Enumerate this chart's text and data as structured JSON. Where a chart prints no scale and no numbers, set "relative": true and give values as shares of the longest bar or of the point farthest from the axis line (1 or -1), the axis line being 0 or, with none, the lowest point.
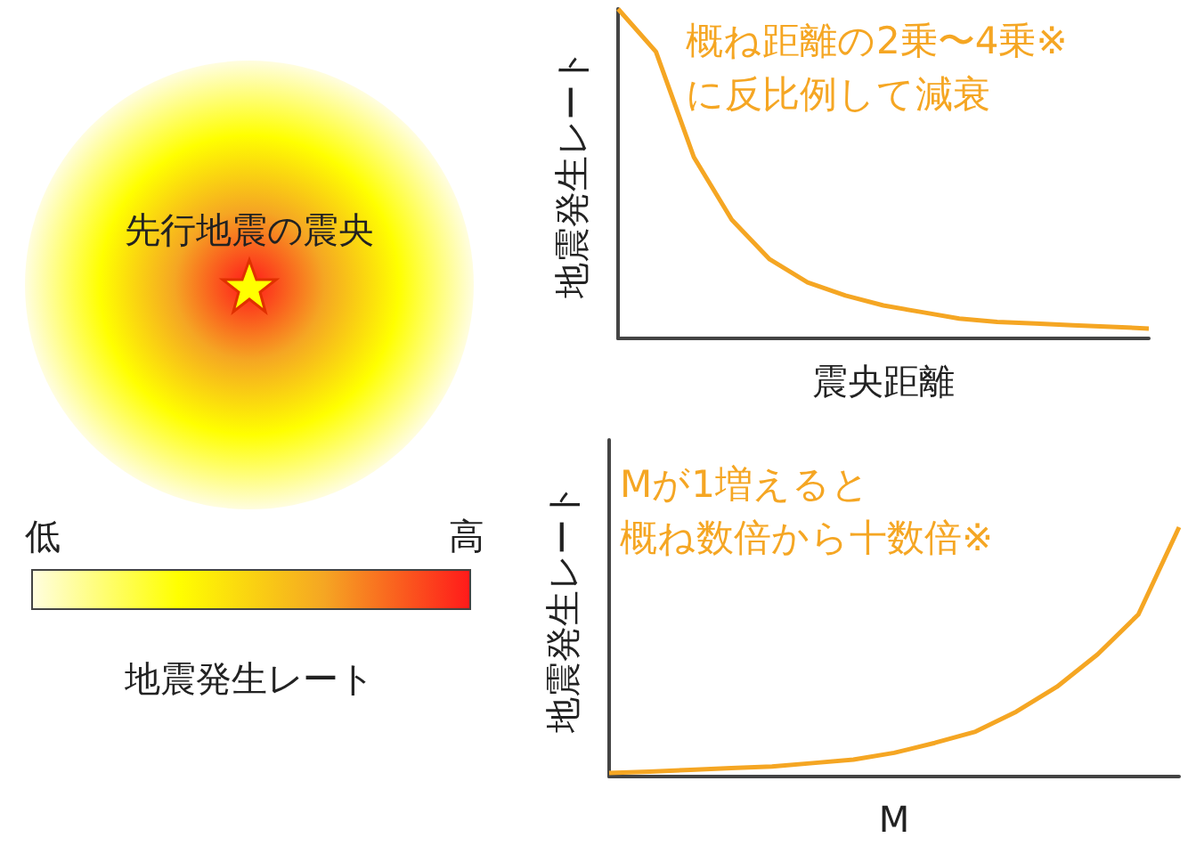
{
  "chart_data": [
    {
      "type": "other",
      "annotations": [
        "先行地震の震央",
        "低",
        "高"
      ],
      "clabel": "地震発生レート",
      "colors": [
        "#fffde0",
        "#ffff00",
        "#f5a623",
        "#ff1a1a"
      ]
    },
    {
      "type": "line",
      "relative": true,
      "xlabel": "震央距離",
      "ylabel": "地震発生レート",
      "annotations": [
        "概ね距離の2乗〜4乗※",
        "に反比例して減衰"
      ],
      "categories": [
        null,
        null,
        null,
        null,
        null,
        null,
        null,
        null,
        null,
        null,
        null,
        null,
        null,
        null,
        null
      ],
      "series": [
        {
          "color": "#f5a623",
          "values": [
            1.0,
            0.87,
            0.55,
            0.36,
            0.24,
            0.17,
            0.13,
            0.1,
            0.08,
            0.06,
            0.05,
            0.045,
            0.04,
            0.035,
            0.03
          ]
        }
      ],
      "marker": "none"
    },
    {
      "type": "line",
      "relative": true,
      "xlabel": "M",
      "ylabel": "地震発生レート",
      "annotations": [
        "Mが1増えると",
        "概ね数倍から十数倍※"
      ],
      "categories": [
        null,
        null,
        null,
        null,
        null,
        null,
        null,
        null,
        null,
        null,
        null,
        null,
        null,
        null,
        null
      ],
      "series": [
        {
          "color": "#f5a623",
          "values": [
            0.014,
            0.02,
            0.027,
            0.034,
            0.04,
            0.054,
            0.068,
            0.095,
            0.135,
            0.18,
            0.26,
            0.36,
            0.49,
            0.65,
            1.0
          ]
        }
      ],
      "marker": "none"
    }
  ]
}
